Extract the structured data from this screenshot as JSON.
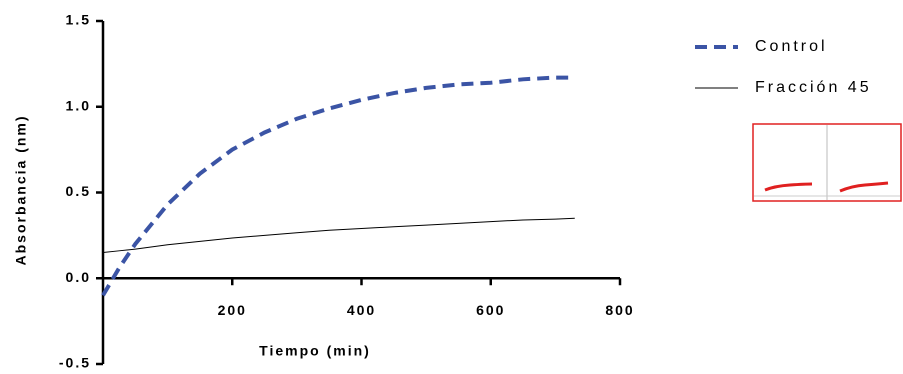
{
  "chart_data": {
    "type": "line",
    "xlabel": "Tiempo (min)",
    "ylabel": "Absorbancia (nm)",
    "x": [
      0,
      25,
      50,
      100,
      150,
      200,
      250,
      300,
      350,
      400,
      450,
      500,
      550,
      600,
      650,
      700,
      730
    ],
    "series": [
      {
        "name": "Control",
        "color": "#3b54a5",
        "dashed": true,
        "values": [
          -0.1,
          0.06,
          0.2,
          0.43,
          0.61,
          0.75,
          0.85,
          0.93,
          0.99,
          1.04,
          1.08,
          1.11,
          1.13,
          1.14,
          1.16,
          1.17,
          1.17
        ]
      },
      {
        "name": "Fracción 45",
        "color": "#000000",
        "dashed": false,
        "values": [
          0.15,
          0.16,
          0.17,
          0.195,
          0.215,
          0.235,
          0.25,
          0.265,
          0.28,
          0.29,
          0.3,
          0.31,
          0.32,
          0.33,
          0.34,
          0.345,
          0.35
        ]
      }
    ],
    "xlim": [
      0,
      800
    ],
    "xticks": [
      200,
      400,
      600,
      800
    ],
    "ylim": [
      -0.5,
      1.5
    ],
    "yticks": [
      {
        "value": -0.5,
        "label": "-0.5"
      },
      {
        "value": 0,
        "label": "0.0"
      },
      {
        "value": 0.5,
        "label": "0.5"
      },
      {
        "value": 1,
        "label": "1.0"
      },
      {
        "value": 1.5,
        "label": "1.5"
      }
    ],
    "legend": "right"
  }
}
